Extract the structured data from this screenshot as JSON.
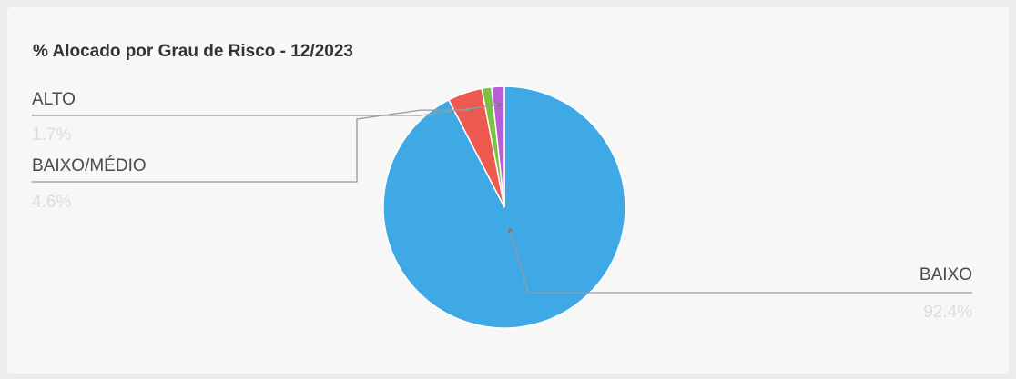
{
  "chart_data": {
    "type": "pie",
    "title": "% Alocado por Grau de Risco - 12/2023",
    "slices": [
      {
        "category": "BAIXO",
        "value": 92.4,
        "label": "92.4%",
        "color": "#3fa9e6"
      },
      {
        "category": "BAIXO/MÉDIO",
        "value": 4.6,
        "label": "4.6%",
        "color": "#ee5a4f"
      },
      {
        "category": "",
        "value": 1.3,
        "label": "",
        "color": "#7cc242"
      },
      {
        "category": "ALTO",
        "value": 1.7,
        "label": "1.7%",
        "color": "#b55fd6"
      }
    ],
    "legend": "none"
  }
}
